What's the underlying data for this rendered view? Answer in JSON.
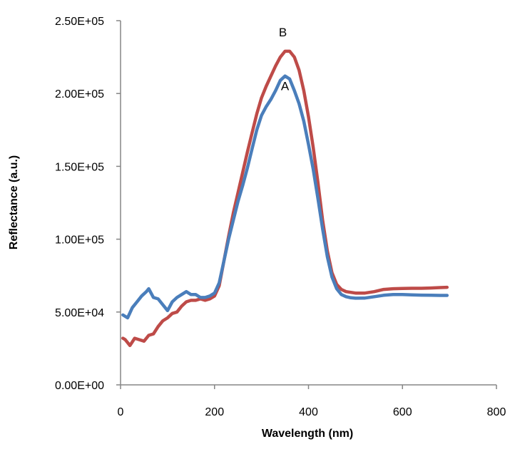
{
  "chart_data": {
    "type": "line",
    "title": "",
    "xlabel": "Wavelength (nm)",
    "ylabel": "Reflectance (a.u.)",
    "xlim": [
      0,
      800
    ],
    "ylim": [
      0,
      250000
    ],
    "x_ticks": [
      "0",
      "200",
      "400",
      "600",
      "800"
    ],
    "y_ticks": [
      "0.00E+00",
      "5.00E+04",
      "1.00E+05",
      "1.50E+05",
      "2.00E+05",
      "2.50E+05"
    ],
    "grid": false,
    "series": [
      {
        "name": "A",
        "color": "#4A7EBB",
        "x": [
          5,
          15,
          25,
          35,
          45,
          55,
          60,
          70,
          80,
          90,
          100,
          110,
          120,
          130,
          140,
          150,
          160,
          170,
          180,
          190,
          200,
          210,
          220,
          230,
          240,
          250,
          260,
          270,
          280,
          290,
          300,
          310,
          320,
          330,
          340,
          350,
          360,
          370,
          380,
          390,
          400,
          410,
          420,
          430,
          440,
          450,
          460,
          470,
          480,
          490,
          500,
          520,
          540,
          560,
          580,
          600,
          620,
          640,
          660,
          680,
          695
        ],
        "y": [
          48000,
          46000,
          53000,
          57000,
          61000,
          64000,
          66000,
          60000,
          59000,
          55000,
          51000,
          57000,
          60000,
          62000,
          64000,
          62000,
          62000,
          60000,
          60000,
          61000,
          63000,
          70000,
          85000,
          100000,
          113000,
          126000,
          137000,
          149000,
          162000,
          175000,
          185000,
          191000,
          196000,
          202000,
          209000,
          212000,
          210000,
          202000,
          193000,
          181000,
          165000,
          148000,
          128000,
          107000,
          88000,
          74000,
          66000,
          62000,
          60500,
          59800,
          59500,
          59600,
          60500,
          61500,
          62000,
          62000,
          61800,
          61600,
          61500,
          61400,
          61400
        ]
      },
      {
        "name": "B",
        "color": "#BE4B48",
        "x": [
          5,
          10,
          20,
          30,
          40,
          50,
          55,
          60,
          70,
          80,
          90,
          100,
          110,
          120,
          130,
          140,
          150,
          160,
          170,
          180,
          190,
          200,
          210,
          220,
          230,
          240,
          250,
          260,
          270,
          280,
          290,
          300,
          310,
          320,
          330,
          340,
          350,
          360,
          370,
          380,
          390,
          400,
          410,
          420,
          430,
          440,
          450,
          460,
          470,
          480,
          490,
          500,
          520,
          540,
          560,
          580,
          600,
          620,
          640,
          660,
          680,
          695
        ],
        "y": [
          32000,
          31000,
          27000,
          32000,
          31000,
          30000,
          32000,
          34000,
          35000,
          40000,
          44000,
          46000,
          49000,
          50000,
          54000,
          57000,
          58000,
          58000,
          59000,
          58000,
          59000,
          61000,
          68000,
          85000,
          102000,
          118000,
          132000,
          146000,
          160000,
          173000,
          186000,
          197000,
          205000,
          212000,
          219000,
          225000,
          229000,
          229000,
          225000,
          216000,
          202000,
          184000,
          163000,
          139000,
          113000,
          92000,
          77000,
          69000,
          65500,
          64000,
          63500,
          63000,
          63000,
          64000,
          65500,
          66000,
          66200,
          66300,
          66300,
          66500,
          66800,
          67000
        ]
      }
    ]
  }
}
